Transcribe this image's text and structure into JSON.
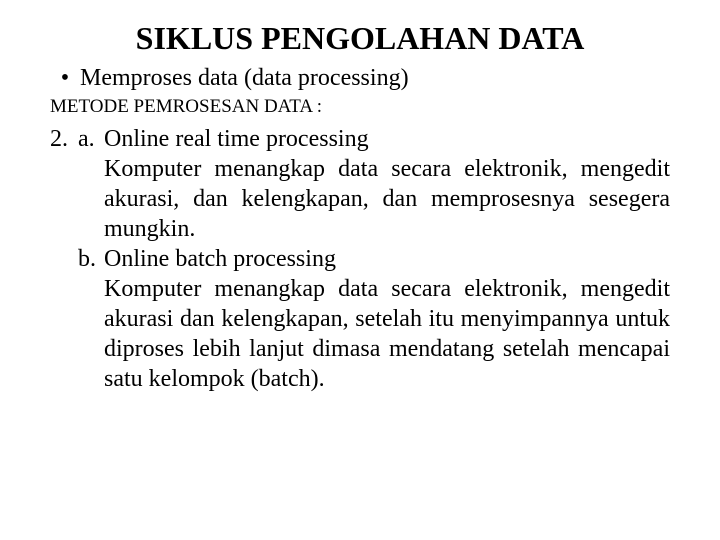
{
  "title": "SIKLUS PENGOLAHAN DATA",
  "bullet": {
    "marker": "•",
    "text": "Memproses data (data processing)"
  },
  "subheading": "METODE PEMROSESAN DATA :",
  "list": {
    "number": "2.",
    "a": {
      "letter": "a.",
      "heading": "Online real time processing",
      "body": "Komputer menangkap data secara elektronik, mengedit akurasi, dan kelengkapan, dan memprosesnya sesegera mungkin."
    },
    "b": {
      "letter": "b.",
      "heading": "Online batch processing",
      "body": "Komputer menangkap data secara elektronik, mengedit akurasi dan kelengkapan, setelah itu menyimpannya untuk diproses lebih lanjut dimasa mendatang setelah mencapai satu kelompok (batch)."
    }
  }
}
